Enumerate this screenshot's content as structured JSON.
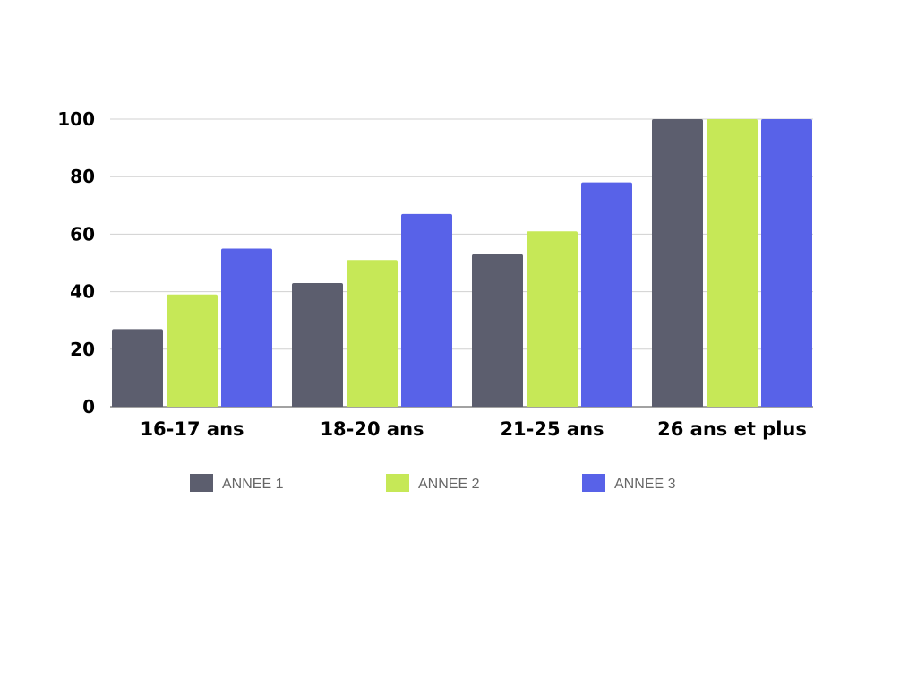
{
  "chart_data": {
    "type": "bar",
    "title": "",
    "xlabel": "",
    "ylabel": "",
    "categories": [
      "16-17 ans",
      "18-20 ans",
      "21-25 ans",
      "26 ans et plus"
    ],
    "series": [
      {
        "name": "ANNEE 1",
        "color": "#5c5e6e",
        "values": [
          27,
          43,
          53,
          100
        ]
      },
      {
        "name": "ANNEE 2",
        "color": "#c6e857",
        "values": [
          39,
          51,
          61,
          100
        ]
      },
      {
        "name": "ANNEE 3",
        "color": "#5862e8",
        "values": [
          55,
          67,
          78,
          100
        ]
      }
    ],
    "ylim": [
      0,
      100
    ],
    "yticks": [
      0,
      20,
      40,
      60,
      80,
      100
    ],
    "grid": true,
    "legend": "bottom"
  }
}
